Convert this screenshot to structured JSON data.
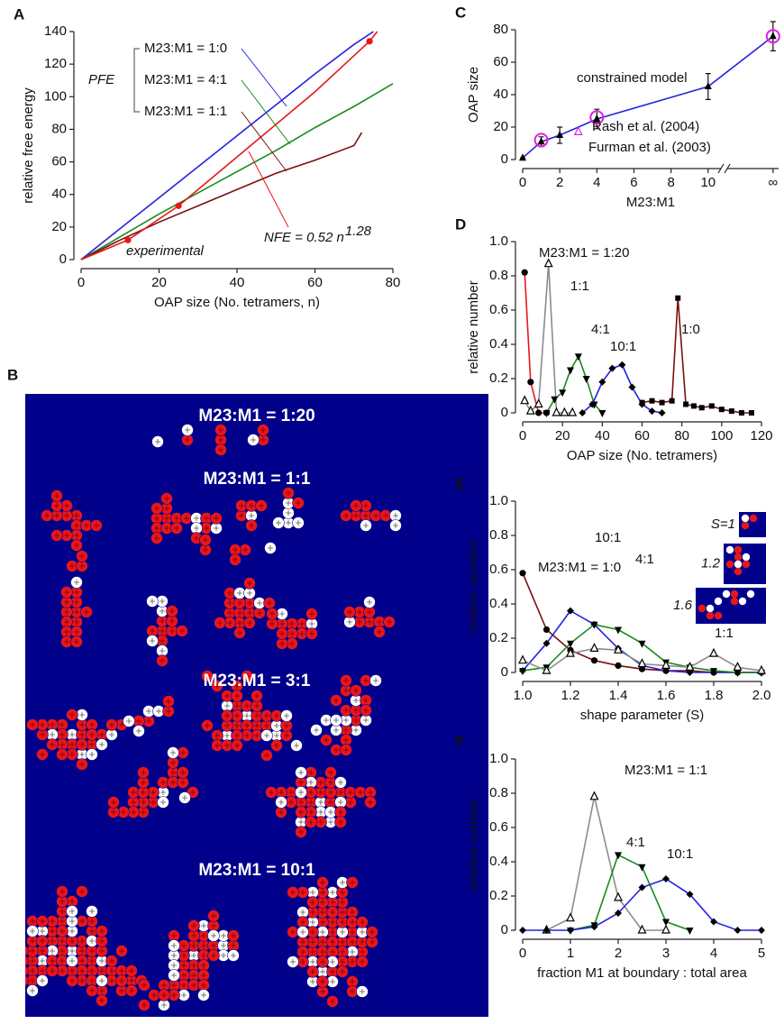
{
  "chart_data": [
    {
      "panel": "A",
      "type": "line",
      "xlabel": "OAP size (No. tetramers, n)",
      "ylabel": "relative free energy",
      "xlim": [
        0,
        80
      ],
      "ylim": [
        0,
        140
      ],
      "xticks": [
        0,
        20,
        40,
        60,
        80
      ],
      "yticks": [
        0,
        20,
        40,
        60,
        80,
        100,
        120,
        140
      ],
      "annotations": [
        {
          "text": "PFE"
        }
      ],
      "series": [
        {
          "name": "M23:M1 = 1:0",
          "color": "#2222e0",
          "x": [
            0,
            10,
            20,
            30,
            40,
            50,
            60,
            70,
            75
          ],
          "values": [
            0,
            19,
            38,
            57,
            76,
            95,
            114,
            132,
            140
          ]
        },
        {
          "name": "M23:M1 = 4:1",
          "color": "#1a8a1a",
          "x": [
            0,
            10,
            20,
            30,
            40,
            50,
            60,
            70,
            80
          ],
          "values": [
            0,
            14,
            28,
            41,
            54,
            67,
            81,
            94,
            108
          ]
        },
        {
          "name": "M23:M1 = 1:1",
          "color": "#7a1010",
          "x": [
            0,
            10,
            20,
            30,
            40,
            50,
            60,
            70,
            72
          ],
          "values": [
            0,
            12,
            23,
            33,
            43,
            53,
            61,
            70,
            78
          ]
        },
        {
          "name": "NFE = 0.52 n",
          "exponent": "1.28",
          "color": "#e8161b",
          "x": [
            0,
            12,
            25,
            40,
            60,
            74,
            76
          ],
          "values": [
            0,
            12,
            33,
            63,
            103,
            134,
            140
          ]
        },
        {
          "name": "experimental",
          "type": "scatter",
          "marker": "circle",
          "color": "#e8161b",
          "x": [
            12,
            25,
            74
          ],
          "values": [
            12,
            33,
            134
          ]
        }
      ]
    },
    {
      "panel": "C",
      "type": "line",
      "xlabel": "M23:M1",
      "ylabel": "OAP size",
      "xlim": [
        0,
        13.8
      ],
      "ylim": [
        0,
        80
      ],
      "xticks": [
        0,
        2,
        4,
        6,
        8,
        10,
        {
          "value": 13.5,
          "label": "∞"
        }
      ],
      "yticks": [
        0,
        20,
        40,
        60,
        80
      ],
      "series": [
        {
          "name": "constrained model",
          "color": "#2222e0",
          "marker": "triangle",
          "marker_color": "#000000",
          "x": [
            0,
            1,
            2,
            4,
            10,
            13.5
          ],
          "values": [
            1,
            11,
            15,
            25,
            45,
            76
          ],
          "errors": [
            0,
            3,
            5,
            6,
            8,
            9
          ]
        },
        {
          "name": "Rash et al. (2004)",
          "type": "scatter",
          "marker": "circle-open",
          "color": "#e020e0",
          "x": [
            1,
            4,
            13.5
          ],
          "values": [
            12,
            26,
            76
          ]
        },
        {
          "name": "Furman et al. (2003)",
          "type": "scatter",
          "marker": "triangle-open",
          "color": "#e020e0",
          "x": [
            3
          ],
          "values": [
            17
          ]
        }
      ]
    },
    {
      "panel": "D",
      "type": "line",
      "xlabel": "OAP size (No. tetramers)",
      "ylabel": "relative number",
      "xlim": [
        0,
        120
      ],
      "ylim": [
        0,
        1
      ],
      "xticks": [
        0,
        20,
        40,
        60,
        80,
        100,
        120
      ],
      "yticks": [
        0,
        0.2,
        0.4,
        0.6,
        0.8,
        {
          "value": 1,
          "label": "1.0"
        }
      ],
      "series": [
        {
          "name": "M23:M1 = 1:20",
          "color": "#e8161b",
          "marker": "circle",
          "marker_color": "#000000",
          "x": [
            1,
            4,
            8,
            12
          ],
          "values": [
            0.82,
            0.18,
            0,
            0
          ]
        },
        {
          "name": "1:1",
          "color": "#8c8c8c",
          "marker": "triangle-open",
          "marker_color": "#000000",
          "x": [
            1,
            4,
            8,
            13,
            17,
            21,
            25
          ],
          "values": [
            0.07,
            0.01,
            0.05,
            0.87,
            0,
            0,
            0
          ]
        },
        {
          "name": "4:1",
          "color": "#1a8a1a",
          "marker": "triangle-down",
          "marker_color": "#000000",
          "x": [
            12,
            16,
            20,
            24,
            28,
            32,
            36,
            40
          ],
          "values": [
            0,
            0.08,
            0.12,
            0.25,
            0.33,
            0.2,
            0.05,
            0
          ]
        },
        {
          "name": "10:1",
          "color": "#2222e0",
          "marker": "diamond",
          "marker_color": "#000000",
          "x": [
            30,
            35,
            40,
            45,
            50,
            55,
            60,
            65,
            70
          ],
          "values": [
            0,
            0.05,
            0.18,
            0.26,
            0.28,
            0.15,
            0.05,
            0.01,
            0
          ]
        },
        {
          "name": "1:0",
          "color": "#7a1010",
          "label_color": "#6b1a6b",
          "marker": "square",
          "marker_color": "#000000",
          "x": [
            60,
            65,
            70,
            75,
            78,
            82,
            86,
            90,
            95,
            100,
            105,
            110,
            115
          ],
          "values": [
            0.06,
            0.07,
            0.06,
            0.07,
            0.67,
            0.05,
            0.04,
            0.03,
            0.04,
            0.02,
            0.01,
            0,
            0
          ]
        }
      ]
    },
    {
      "panel": "E",
      "type": "line",
      "xlabel": "shape parameter (S)",
      "ylabel": "relative number",
      "xlim": [
        1,
        2
      ],
      "ylim": [
        0,
        1
      ],
      "xticks": [
        {
          "value": 1,
          "label": "1.0"
        },
        1.2,
        1.4,
        1.6,
        1.8,
        {
          "value": 2,
          "label": "2.0"
        }
      ],
      "yticks": [
        0,
        0.2,
        0.4,
        0.6,
        0.8,
        {
          "value": 1,
          "label": "1.0"
        }
      ],
      "insets": [
        {
          "label": "S=1"
        },
        {
          "label": "1.2"
        },
        {
          "label": "1.6"
        }
      ],
      "series": [
        {
          "name": "M23:M1 = 1:0",
          "color": "#7a1010",
          "label_color": "#6b1a6b",
          "marker": "circle",
          "marker_color": "#000000",
          "x": [
            1,
            1.1,
            1.2,
            1.3,
            1.4,
            1.5,
            1.6,
            1.7,
            1.8,
            1.9,
            2
          ],
          "values": [
            0.58,
            0.25,
            0.13,
            0.07,
            0.04,
            0.02,
            0.01,
            0.01,
            0,
            0,
            0
          ]
        },
        {
          "name": "10:1",
          "color": "#2222e0",
          "marker": "diamond",
          "marker_color": "#000000",
          "x": [
            1,
            1.1,
            1.2,
            1.3,
            1.4,
            1.5,
            1.6,
            1.7,
            1.8,
            1.9,
            2
          ],
          "values": [
            0.01,
            0.17,
            0.36,
            0.28,
            0.14,
            0.04,
            0.01,
            0,
            0,
            0,
            0
          ]
        },
        {
          "name": "4:1",
          "color": "#1a8a1a",
          "marker": "triangle-down",
          "marker_color": "#000000",
          "x": [
            1,
            1.1,
            1.2,
            1.3,
            1.4,
            1.5,
            1.6,
            1.7,
            1.8,
            1.9,
            2
          ],
          "values": [
            0.01,
            0.03,
            0.17,
            0.28,
            0.25,
            0.17,
            0.06,
            0.03,
            0.01,
            0,
            0
          ]
        },
        {
          "name": "1:1",
          "color": "#8c8c8c",
          "marker": "triangle-open",
          "marker_color": "#000000",
          "x": [
            1,
            1.1,
            1.2,
            1.3,
            1.4,
            1.5,
            1.6,
            1.7,
            1.8,
            1.9,
            2
          ],
          "values": [
            0.07,
            0.01,
            0.11,
            0.14,
            0.13,
            0.05,
            0.04,
            0.03,
            0.11,
            0.03,
            0.01
          ]
        }
      ]
    },
    {
      "panel": "F",
      "type": "line",
      "xlabel": "fraction M1 at boundary : total area",
      "ylabel": "relative number",
      "xlim": [
        0,
        5
      ],
      "ylim": [
        0,
        1
      ],
      "xticks": [
        0,
        1,
        2,
        3,
        4,
        5
      ],
      "yticks": [
        0,
        0.2,
        0.4,
        0.6,
        0.8,
        {
          "value": 1,
          "label": "1.0"
        }
      ],
      "series": [
        {
          "name": "M23:M1 = 1:1",
          "color": "#8c8c8c",
          "marker": "triangle-open",
          "marker_color": "#000000",
          "x": [
            0.5,
            1,
            1.5,
            2,
            2.5,
            3
          ],
          "values": [
            0,
            0.07,
            0.78,
            0.19,
            0,
            0
          ]
        },
        {
          "name": "4:1",
          "color": "#1a8a1a",
          "marker": "triangle-down",
          "marker_color": "#000000",
          "x": [
            1,
            1.5,
            2,
            2.5,
            3,
            3.5
          ],
          "values": [
            0,
            0.03,
            0.44,
            0.37,
            0.05,
            0
          ]
        },
        {
          "name": "10:1",
          "color": "#2222e0",
          "marker": "diamond",
          "marker_color": "#000000",
          "x": [
            0,
            0.5,
            1,
            1.5,
            2,
            2.5,
            3,
            3.5,
            4,
            4.5,
            5
          ],
          "values": [
            0,
            0,
            0,
            0.02,
            0.1,
            0.25,
            0.3,
            0.21,
            0.05,
            0,
            0
          ]
        }
      ]
    }
  ],
  "panel_b": {
    "panel": "B",
    "labels": [
      "M23:M1 = 1:20",
      "M23:M1 = 1:1",
      "M23:M1 = 3:1",
      "M23:M1 = 10:1"
    ]
  }
}
